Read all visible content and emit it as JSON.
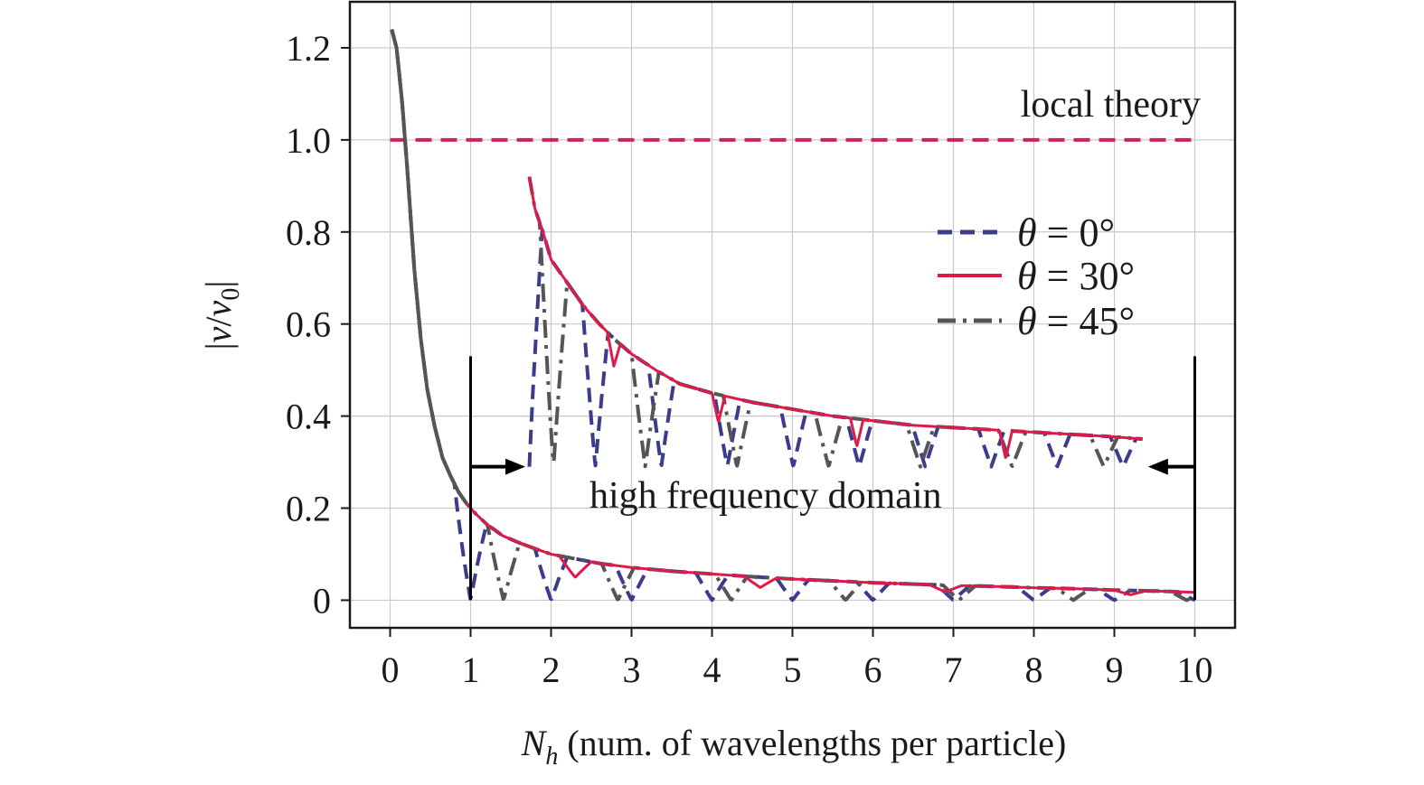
{
  "chart_data": {
    "type": "line",
    "xlabel_symbol": "N",
    "xlabel_sub": "h",
    "xlabel_rest": " (num. of wavelengths per particle)",
    "ylabel_left": "|",
    "ylabel_v": "v",
    "ylabel_slash": "/",
    "ylabel_v0": "v",
    "ylabel_sub": "0",
    "ylabel_right": "|",
    "xlim": [
      -0.5,
      10.5
    ],
    "ylim": [
      -0.06,
      1.3
    ],
    "grid": true,
    "x_ticks": [
      0,
      1,
      2,
      3,
      4,
      5,
      6,
      7,
      8,
      9,
      10
    ],
    "x_tick_labels": [
      "0",
      "1",
      "2",
      "3",
      "4",
      "5",
      "6",
      "7",
      "8",
      "9",
      "10"
    ],
    "y_ticks": [
      0,
      0.2,
      0.4,
      0.6,
      0.8,
      1.0,
      1.2
    ],
    "y_tick_labels": [
      "0",
      "0.2",
      "0.4",
      "0.6",
      "0.8",
      "1.0",
      "1.2"
    ],
    "legend_position": "right",
    "legend": [
      {
        "theta": "θ",
        "eq": " = 0°",
        "color": "#3c3c8c",
        "style": "dashed"
      },
      {
        "theta": "θ",
        "eq": " = 30°",
        "color": "#e0194b",
        "style": "solid"
      },
      {
        "theta": "θ",
        "eq": " = 45°",
        "color": "#555555",
        "style": "dashdot"
      }
    ],
    "local_theory": {
      "label": "local theory",
      "y": 1.0,
      "x_range": [
        0,
        10
      ],
      "color": "#d4205a"
    },
    "annotation_high_frequency": "high frequency domain",
    "main_series": {
      "envelope": [
        [
          0.02,
          1.24
        ],
        [
          0.08,
          1.2
        ],
        [
          0.15,
          1.08
        ],
        [
          0.22,
          0.92
        ],
        [
          0.3,
          0.72
        ],
        [
          0.38,
          0.57
        ],
        [
          0.46,
          0.46
        ],
        [
          0.55,
          0.38
        ],
        [
          0.65,
          0.31
        ],
        [
          0.75,
          0.27
        ],
        [
          0.85,
          0.235
        ],
        [
          0.95,
          0.21
        ],
        [
          1.05,
          0.19
        ],
        [
          1.2,
          0.165
        ],
        [
          1.4,
          0.14
        ],
        [
          1.6,
          0.125
        ],
        [
          1.8,
          0.112
        ],
        [
          2.0,
          0.1
        ],
        [
          2.3,
          0.09
        ],
        [
          2.6,
          0.08
        ],
        [
          3.0,
          0.071
        ],
        [
          3.5,
          0.063
        ],
        [
          4.0,
          0.057
        ],
        [
          4.5,
          0.051
        ],
        [
          5.0,
          0.046
        ],
        [
          5.5,
          0.042
        ],
        [
          6.0,
          0.038
        ],
        [
          6.5,
          0.035
        ],
        [
          7.0,
          0.032
        ],
        [
          7.5,
          0.03
        ],
        [
          8.0,
          0.027
        ],
        [
          8.5,
          0.025
        ],
        [
          9.0,
          0.022
        ],
        [
          9.5,
          0.02
        ],
        [
          10.0,
          0.017
        ]
      ],
      "theta0_minima": [
        1.0,
        2.0,
        3.0,
        4.0,
        5.0,
        6.0,
        7.0,
        8.0,
        9.0,
        10.0
      ],
      "theta45_minima": [
        1.41,
        2.83,
        4.24,
        5.66,
        7.07,
        8.49,
        9.9
      ],
      "theta30_minima": [
        2.3,
        4.6,
        6.9,
        9.2
      ]
    },
    "inset_series": {
      "x_range": [
        1.73,
        9.35
      ],
      "envelope": [
        [
          1.73,
          0.92
        ],
        [
          1.8,
          0.85
        ],
        [
          1.9,
          0.8
        ],
        [
          2.0,
          0.74
        ],
        [
          2.2,
          0.69
        ],
        [
          2.4,
          0.64
        ],
        [
          2.6,
          0.6
        ],
        [
          2.8,
          0.565
        ],
        [
          3.0,
          0.535
        ],
        [
          3.3,
          0.5
        ],
        [
          3.6,
          0.47
        ],
        [
          4.0,
          0.45
        ],
        [
          4.5,
          0.43
        ],
        [
          5.0,
          0.415
        ],
        [
          5.5,
          0.4
        ],
        [
          6.0,
          0.39
        ],
        [
          6.5,
          0.38
        ],
        [
          7.0,
          0.375
        ],
        [
          7.5,
          0.37
        ],
        [
          8.0,
          0.365
        ],
        [
          8.5,
          0.36
        ],
        [
          9.0,
          0.355
        ],
        [
          9.35,
          0.35
        ]
      ],
      "theta0_minima": [
        1.73,
        2.55,
        3.37,
        4.19,
        5.01,
        5.83,
        6.65,
        7.47,
        8.29,
        9.11
      ],
      "theta45_minima": [
        2.03,
        3.17,
        4.31,
        5.45,
        6.59,
        7.73,
        8.87
      ],
      "theta30_minima": [
        2.78,
        4.08,
        5.8,
        7.65
      ],
      "minimum_level": 0.29
    },
    "arrow_markers": {
      "left_vline_x": 1.0,
      "right_vline_x": 10.0,
      "vline_top": 0.53,
      "arrow_y": 0.29,
      "left_arrow_to_x": 1.68,
      "right_arrow_to_x": 9.42
    }
  }
}
